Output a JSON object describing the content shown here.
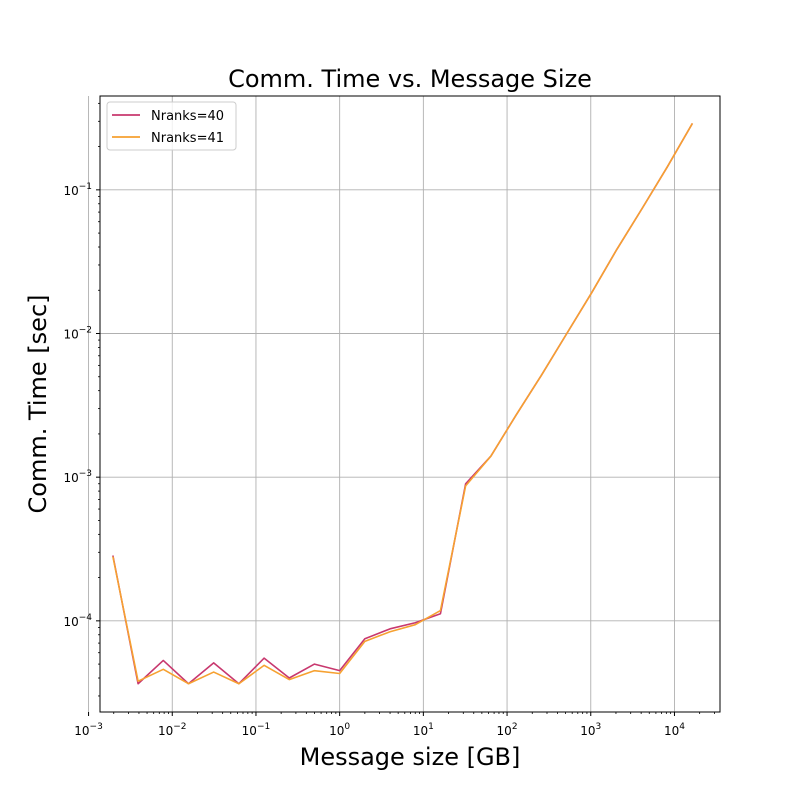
{
  "chart_data": {
    "type": "line",
    "title": "Comm. Time vs. Message Size",
    "xlabel": "Message size [GB]",
    "ylabel": "Comm. Time [sec]",
    "xscale": "log",
    "yscale": "log",
    "xlim": [
      0.00137,
      35000
    ],
    "ylim": [
      2.32e-05,
      0.45
    ],
    "grid": true,
    "legend_position": "top-left",
    "x_ticks": [
      {
        "base": "10",
        "exp": "−3",
        "value": 0.001
      },
      {
        "base": "10",
        "exp": "−2",
        "value": 0.01
      },
      {
        "base": "10",
        "exp": "−1",
        "value": 0.1
      },
      {
        "base": "10",
        "exp": "0",
        "value": 1
      },
      {
        "base": "10",
        "exp": "1",
        "value": 10
      },
      {
        "base": "10",
        "exp": "2",
        "value": 100
      },
      {
        "base": "10",
        "exp": "3",
        "value": 1000
      },
      {
        "base": "10",
        "exp": "4",
        "value": 10000
      }
    ],
    "y_ticks": [
      {
        "base": "10",
        "exp": "−4",
        "value": 0.0001
      },
      {
        "base": "10",
        "exp": "−3",
        "value": 0.001
      },
      {
        "base": "10",
        "exp": "−2",
        "value": 0.01
      },
      {
        "base": "10",
        "exp": "−1",
        "value": 0.1
      }
    ],
    "x": [
      0.001953125,
      0.00390625,
      0.0078125,
      0.015625,
      0.03125,
      0.0625,
      0.125,
      0.25,
      0.5,
      1,
      2,
      4,
      8,
      16,
      32,
      64,
      128,
      256,
      512,
      1024,
      2048,
      4096,
      8192,
      16384
    ],
    "series": [
      {
        "name": "Nranks=40",
        "color": "#c8386e",
        "values": [
          0.000285,
          3.65e-05,
          5.3e-05,
          3.65e-05,
          5.1e-05,
          3.65e-05,
          5.5e-05,
          4e-05,
          5e-05,
          4.5e-05,
          7.5e-05,
          8.8e-05,
          9.7e-05,
          0.000112,
          0.0009,
          0.0014,
          0.0027,
          0.0051,
          0.0099,
          0.0192,
          0.0385,
          0.074,
          0.144,
          0.29
        ]
      },
      {
        "name": "Nranks=41",
        "color": "#f6a131",
        "values": [
          0.00028,
          3.8e-05,
          4.6e-05,
          3.65e-05,
          4.4e-05,
          3.65e-05,
          4.9e-05,
          3.9e-05,
          4.5e-05,
          4.3e-05,
          7.2e-05,
          8.4e-05,
          9.4e-05,
          0.000118,
          0.00087,
          0.0014,
          0.0027,
          0.0051,
          0.0099,
          0.0192,
          0.0385,
          0.074,
          0.144,
          0.29
        ]
      }
    ]
  }
}
